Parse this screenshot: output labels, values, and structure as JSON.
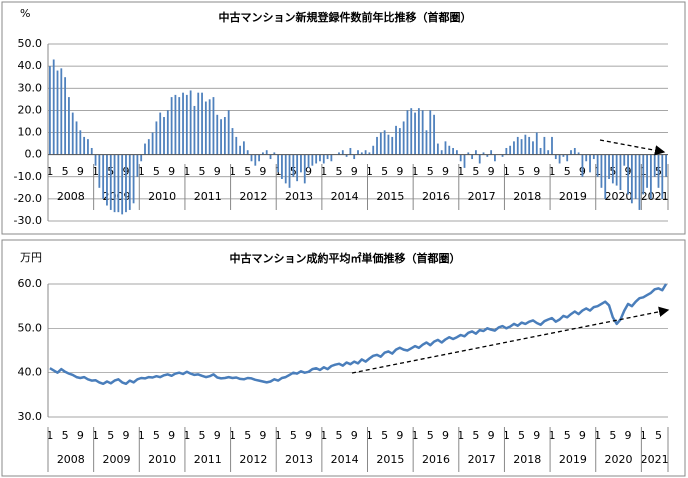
{
  "chart_data": [
    {
      "type": "bar",
      "title": "中古マンション新規登録件数前年比推移（首都圏）",
      "y_unit": "%",
      "color": "#4f81bd",
      "categories": [
        1,
        null,
        null,
        null,
        5,
        null,
        null,
        null,
        9,
        null,
        null,
        null,
        1,
        null,
        null,
        null,
        5,
        null,
        null,
        null,
        9,
        null,
        null,
        null,
        1,
        null,
        null,
        null,
        5,
        null,
        null,
        null,
        9,
        null,
        null,
        null,
        1,
        null,
        null,
        null,
        5,
        null,
        null,
        null,
        9,
        null,
        null,
        null,
        1,
        null,
        null,
        null,
        5,
        null,
        null,
        null,
        9,
        null,
        null,
        null,
        1,
        null,
        null,
        null,
        5,
        null,
        null,
        null,
        9,
        null,
        null,
        null,
        1,
        null,
        null,
        null,
        5,
        null,
        null,
        null,
        9,
        null,
        null,
        null,
        1,
        null,
        null,
        null,
        5,
        null,
        null,
        null,
        9,
        null,
        null,
        null,
        1,
        null,
        null,
        null,
        5,
        null,
        null,
        null,
        9,
        null,
        null,
        null,
        1,
        null,
        null,
        null,
        5,
        null,
        null,
        null,
        9,
        null,
        null,
        null,
        1,
        null,
        null,
        null,
        5,
        null,
        null,
        null,
        9,
        null,
        null,
        null,
        1,
        null,
        null,
        null,
        5,
        null,
        null,
        null,
        9,
        null,
        null,
        null,
        1,
        null,
        null,
        null,
        5,
        null,
        null,
        null,
        9,
        null,
        null,
        null,
        1,
        null,
        null,
        null,
        5,
        null,
        null
      ],
      "years": [
        2008,
        2009,
        2010,
        2011,
        2012,
        2013,
        2014,
        2015,
        2016,
        2017,
        2018,
        2019,
        2020,
        2021
      ],
      "values": [
        40,
        43,
        38,
        39,
        35,
        26,
        19,
        15,
        11,
        8,
        7,
        3,
        -5,
        -15,
        -20,
        -23,
        -25,
        -26,
        -26,
        -27,
        -26,
        -25,
        -22,
        -10,
        -3,
        5,
        7,
        10,
        15,
        19,
        17,
        20,
        26,
        27,
        26,
        28,
        27,
        29,
        22,
        28,
        28,
        24,
        25,
        26,
        18,
        16,
        17,
        20,
        12,
        8,
        4,
        6,
        2,
        -3,
        -5,
        -3,
        1,
        2,
        -2,
        1,
        -8,
        -11,
        -13,
        -15,
        -10,
        -12,
        -8,
        -13,
        -6,
        -5,
        -4,
        -3,
        -4,
        -2,
        -3,
        0,
        1,
        2,
        -1,
        3,
        -2,
        2,
        1,
        2,
        1,
        4,
        8,
        10,
        11,
        9,
        8,
        13,
        12,
        15,
        20,
        21,
        19,
        21,
        20,
        11,
        20,
        18,
        5,
        2,
        6,
        4,
        3,
        2,
        -3,
        -6,
        1,
        -2,
        2,
        -4,
        1,
        -1,
        2,
        -3,
        0,
        -1,
        3,
        4,
        6,
        8,
        7,
        9,
        8,
        6,
        10,
        3,
        8,
        2,
        8,
        -2,
        -4,
        -1,
        -3,
        2,
        3,
        1,
        -10,
        -3,
        -8,
        -2,
        -10,
        -15,
        -20,
        -11,
        -13,
        -14,
        -16,
        -5,
        -18,
        -22,
        -20,
        -25,
        -18,
        -15,
        -20,
        -10,
        -15,
        -20,
        -10
      ],
      "ylim": [
        -30,
        50
      ],
      "yticks": [
        {
          "value": -30,
          "label": "-30.0"
        },
        {
          "value": -20,
          "label": "-20.0"
        },
        {
          "value": -10,
          "label": "-10.0"
        },
        {
          "value": 0,
          "label": "0.0"
        },
        {
          "value": 10,
          "label": "10.0"
        },
        {
          "value": 20,
          "label": "20.0"
        },
        {
          "value": 30,
          "label": "30.0"
        },
        {
          "value": 40,
          "label": "40.0"
        },
        {
          "value": 50,
          "label": "50.0"
        }
      ],
      "grid": true
    },
    {
      "type": "line",
      "title": "中古マンション成約平均㎡単価推移（首都圏）",
      "y_unit": "万円",
      "color": "#4a7ebb",
      "categories": [
        1,
        null,
        null,
        null,
        5,
        null,
        null,
        null,
        9,
        null,
        null,
        null,
        1,
        null,
        null,
        null,
        5,
        null,
        null,
        null,
        9,
        null,
        null,
        null,
        1,
        null,
        null,
        null,
        5,
        null,
        null,
        null,
        9,
        null,
        null,
        null,
        1,
        null,
        null,
        null,
        5,
        null,
        null,
        null,
        9,
        null,
        null,
        null,
        1,
        null,
        null,
        null,
        5,
        null,
        null,
        null,
        9,
        null,
        null,
        null,
        1,
        null,
        null,
        null,
        5,
        null,
        null,
        null,
        9,
        null,
        null,
        null,
        1,
        null,
        null,
        null,
        5,
        null,
        null,
        null,
        9,
        null,
        null,
        null,
        1,
        null,
        null,
        null,
        5,
        null,
        null,
        null,
        9,
        null,
        null,
        null,
        1,
        null,
        null,
        null,
        5,
        null,
        null,
        null,
        9,
        null,
        null,
        null,
        1,
        null,
        null,
        null,
        5,
        null,
        null,
        null,
        9,
        null,
        null,
        null,
        1,
        null,
        null,
        null,
        5,
        null,
        null,
        null,
        9,
        null,
        null,
        null,
        1,
        null,
        null,
        null,
        5,
        null,
        null,
        null,
        9,
        null,
        null,
        null,
        1,
        null,
        null,
        null,
        5,
        null,
        null,
        null,
        9,
        null,
        null,
        null,
        1,
        null,
        null,
        null,
        5,
        null,
        null
      ],
      "years": [
        2008,
        2009,
        2010,
        2011,
        2012,
        2013,
        2014,
        2015,
        2016,
        2017,
        2018,
        2019,
        2020,
        2021
      ],
      "values": [
        41,
        40.5,
        40,
        40.8,
        40.2,
        39.8,
        39.5,
        39,
        38.8,
        39,
        38.5,
        38.2,
        38.3,
        37.8,
        37.5,
        38,
        37.6,
        38.2,
        38.5,
        37.8,
        37.5,
        38.2,
        37.8,
        38.5,
        38.8,
        38.7,
        39,
        38.9,
        39.2,
        39,
        39.4,
        39.6,
        39.3,
        39.8,
        40,
        39.7,
        40.2,
        39.8,
        39.5,
        39.6,
        39.3,
        39,
        39.2,
        39.6,
        38.9,
        38.7,
        38.8,
        39,
        38.8,
        38.9,
        38.6,
        38.5,
        38.8,
        38.7,
        38.4,
        38.2,
        38,
        37.8,
        38,
        38.5,
        38.2,
        38.8,
        39,
        39.5,
        40,
        39.8,
        40.3,
        40,
        40.2,
        40.8,
        41,
        40.6,
        41.2,
        40.8,
        41.5,
        41.8,
        42,
        41.6,
        42.3,
        41.9,
        42.5,
        42.1,
        43,
        42.5,
        43.2,
        43.8,
        44,
        43.6,
        44.5,
        44.8,
        44.3,
        45.2,
        45.6,
        45.2,
        45,
        45.5,
        46,
        45.6,
        46.3,
        46.8,
        46.2,
        47,
        47.4,
        46.8,
        47.5,
        48,
        47.6,
        48,
        48.5,
        48.2,
        49,
        49.3,
        48.8,
        49.6,
        49.4,
        50,
        49.7,
        49.5,
        50.2,
        50.5,
        50,
        50.4,
        51,
        50.6,
        51.3,
        51,
        51.5,
        51.8,
        51.2,
        50.8,
        51.6,
        52,
        52.3,
        51.5,
        52,
        52.8,
        52.5,
        53.2,
        53.8,
        53.2,
        54,
        54.5,
        54,
        54.8,
        55,
        55.5,
        56,
        55.2,
        52.5,
        51,
        52,
        54,
        55.5,
        55,
        56,
        56.8,
        57,
        57.5,
        58,
        58.8,
        59,
        58.6,
        60
      ],
      "ylim": [
        30,
        60
      ],
      "yticks": [
        {
          "value": 30,
          "label": "30.0"
        },
        {
          "value": 40,
          "label": "40.0"
        },
        {
          "value": 50,
          "label": "50.0"
        },
        {
          "value": 60,
          "label": "60.0"
        }
      ],
      "grid": true
    }
  ]
}
